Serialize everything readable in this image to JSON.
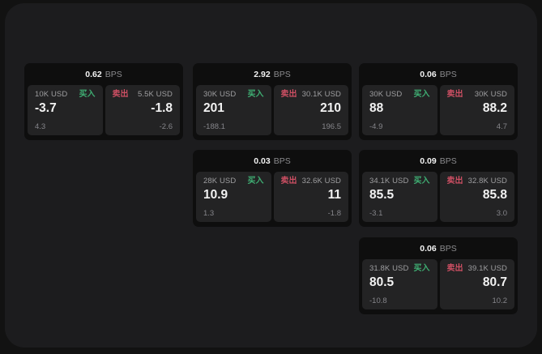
{
  "labels": {
    "bps": "BPS",
    "buy": "买入",
    "sell": "卖出"
  },
  "colors": {
    "buy_accent": "#3fae73",
    "sell_accent": "#cd4f63",
    "window_background": "#1c1c1e",
    "card_background": "#0e0e0e",
    "panel_background": "#232324"
  },
  "cards": [
    {
      "spread": "0.62",
      "buy": {
        "amount": "10K USD",
        "price": "-3.7",
        "change": "4.3"
      },
      "sell": {
        "amount": "5.5K USD",
        "price": "-1.8",
        "change": "-2.6"
      }
    },
    {
      "spread": "2.92",
      "buy": {
        "amount": "30K USD",
        "price": "201",
        "change": "-188.1"
      },
      "sell": {
        "amount": "30.1K USD",
        "price": "210",
        "change": "196.5"
      }
    },
    {
      "spread": "0.06",
      "buy": {
        "amount": "30K USD",
        "price": "88",
        "change": "-4.9"
      },
      "sell": {
        "amount": "30K USD",
        "price": "88.2",
        "change": "4.7"
      }
    },
    {
      "spread": "0.03",
      "buy": {
        "amount": "28K USD",
        "price": "10.9",
        "change": "1.3"
      },
      "sell": {
        "amount": "32.6K USD",
        "price": "11",
        "change": "-1.8"
      }
    },
    {
      "spread": "0.09",
      "buy": {
        "amount": "34.1K USD",
        "price": "85.5",
        "change": "-3.1"
      },
      "sell": {
        "amount": "32.8K USD",
        "price": "85.8",
        "change": "3.0"
      }
    },
    {
      "spread": "0.06",
      "buy": {
        "amount": "31.8K USD",
        "price": "80.5",
        "change": "-10.8"
      },
      "sell": {
        "amount": "39.1K USD",
        "price": "80.7",
        "change": "10.2"
      }
    }
  ]
}
